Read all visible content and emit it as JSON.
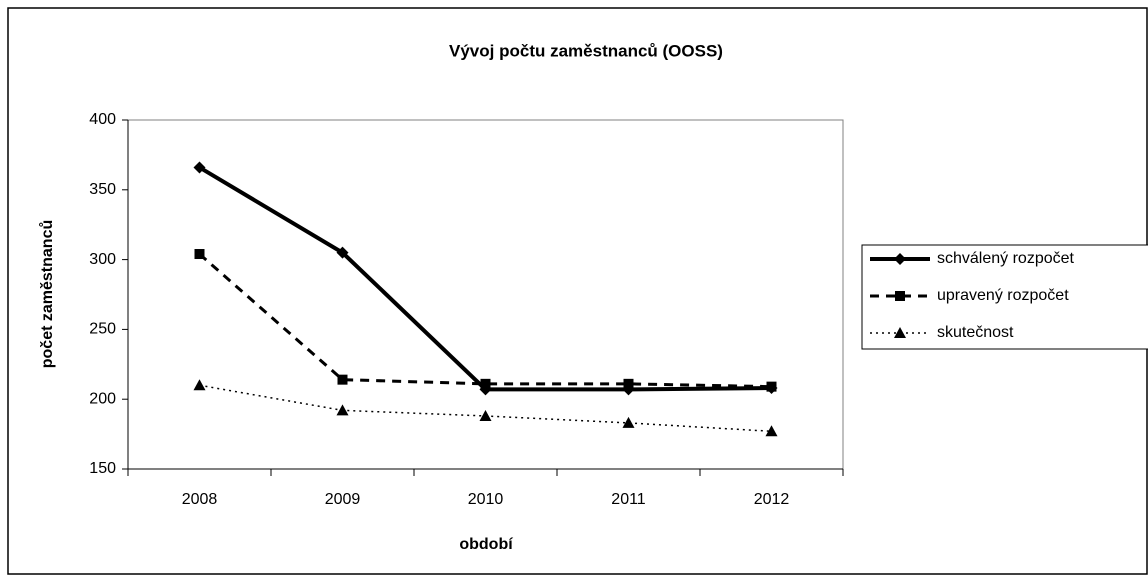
{
  "chart_data": {
    "type": "line",
    "title": "Vývoj počtu zaměstnanců (OOSS)",
    "x_label": "období",
    "y_label": "počet zaměstnanců",
    "categories": [
      "2008",
      "2009",
      "2010",
      "2011",
      "2012"
    ],
    "series": [
      {
        "name": "schválený rozpočet",
        "color": "#000000",
        "line_style": "solid",
        "marker": "diamond",
        "values": [
          366,
          305,
          207,
          207,
          208
        ]
      },
      {
        "name": "upravený rozpočet",
        "color": "#000000",
        "line_style": "dashed",
        "marker": "square",
        "values": [
          304,
          214,
          211,
          211,
          209
        ]
      },
      {
        "name": "skutečnost",
        "color": "#000000",
        "line_style": "dotted",
        "marker": "triangle",
        "values": [
          210,
          192,
          188,
          183,
          177
        ]
      }
    ],
    "ylim": [
      150,
      400
    ],
    "yticks": [
      150,
      200,
      250,
      300,
      350,
      400
    ],
    "grid": false,
    "legend": "right"
  }
}
